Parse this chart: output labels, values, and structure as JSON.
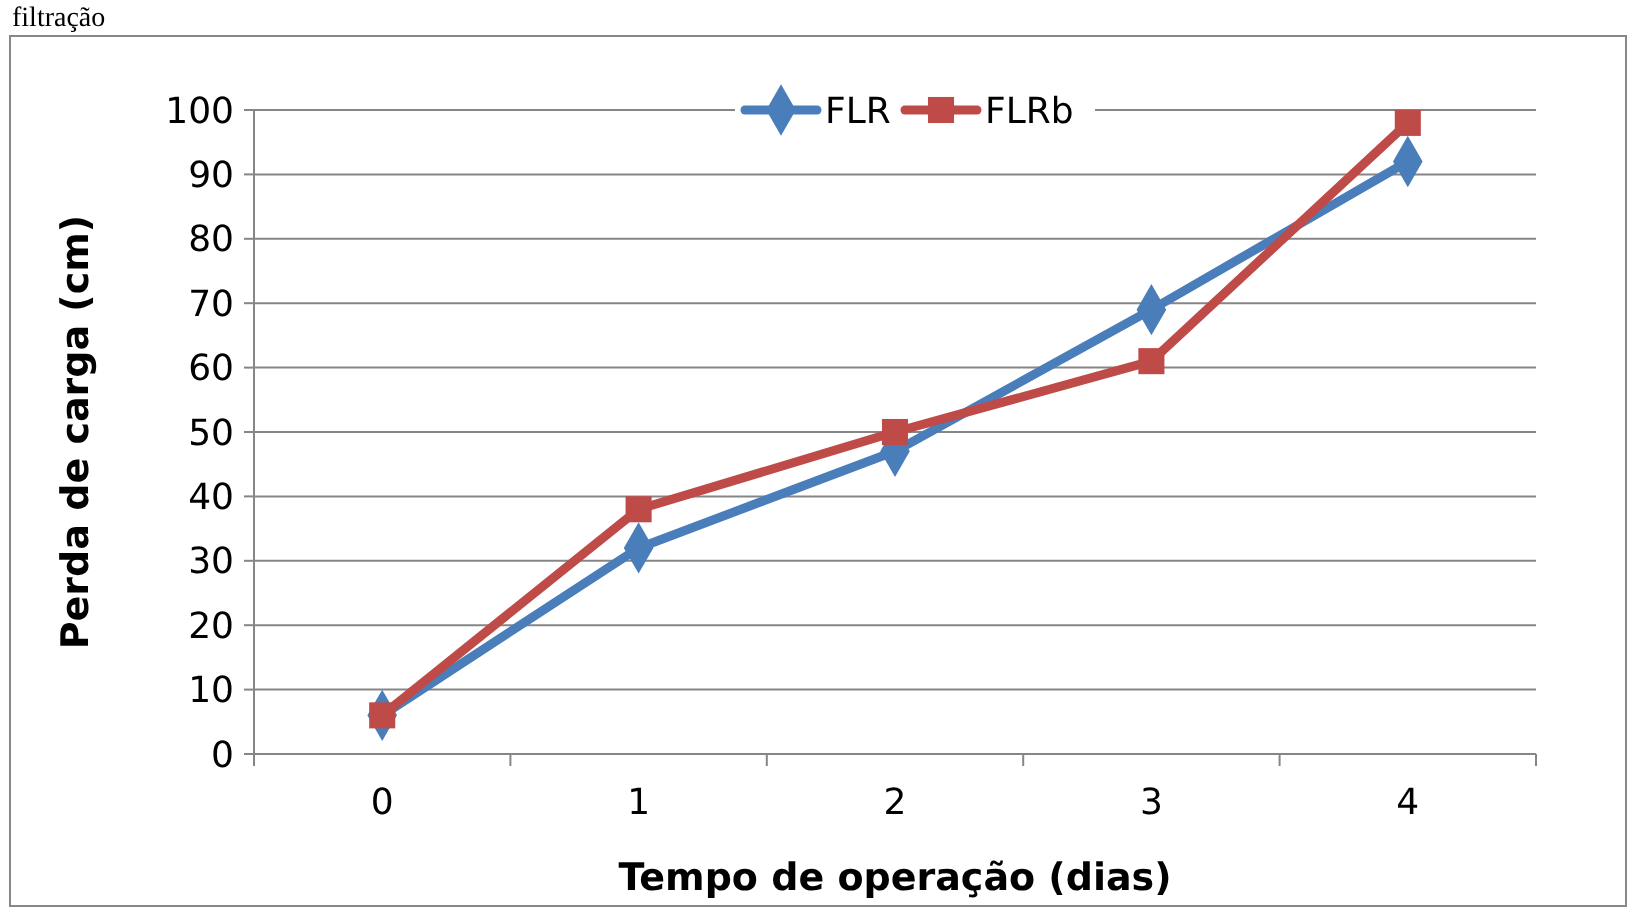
{
  "chart_data": {
    "type": "line",
    "xlabel": "Tempo de operação (dias)",
    "ylabel": "Perda de carga (cm)",
    "annotations": [
      "filtração"
    ],
    "categories": [
      "0",
      "1",
      "2",
      "3",
      "4"
    ],
    "series": [
      {
        "name": "FLR",
        "color": "#4a7ebb",
        "values": [
          6,
          32,
          47,
          69,
          92
        ],
        "marker": "diamond"
      },
      {
        "name": "FLRb",
        "color": "#be4b48",
        "values": [
          6,
          38,
          50,
          61,
          98
        ],
        "marker": "square"
      }
    ],
    "ylim": [
      0,
      100
    ],
    "yticks": [
      0,
      10,
      20,
      30,
      40,
      50,
      60,
      70,
      80,
      90,
      100
    ],
    "grid": "y",
    "legend": "top",
    "line_style": "solid"
  }
}
